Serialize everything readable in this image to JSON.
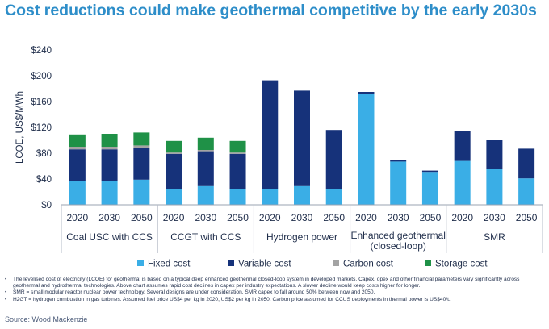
{
  "title": "Cost reductions could make geothermal competitive by the early 2030s",
  "chart_data": {
    "type": "bar",
    "stacked": true,
    "ylabel": "LCOE, US$/MWh",
    "ylim": [
      0,
      240
    ],
    "yticks": [
      "$0",
      "$40",
      "$80",
      "$120",
      "$160",
      "$200",
      "$240"
    ],
    "ytick_values": [
      0,
      40,
      80,
      120,
      160,
      200,
      240
    ],
    "groups": [
      {
        "name": "Coal USC with CCS",
        "years": [
          "2020",
          "2030",
          "2050"
        ]
      },
      {
        "name": "CCGT with CCS",
        "years": [
          "2020",
          "2030",
          "2050"
        ]
      },
      {
        "name": "Hydrogen power",
        "years": [
          "2020",
          "2030",
          "2050"
        ]
      },
      {
        "name": "Enhanced geothermal (closed-loop)",
        "name_lines": [
          "Enhanced geothermal",
          "(closed-loop)"
        ],
        "years": [
          "2020",
          "2030",
          "2050"
        ]
      },
      {
        "name": "SMR",
        "years": [
          "2020",
          "2030",
          "2050"
        ]
      }
    ],
    "series": [
      {
        "name": "Fixed cost",
        "color": "#3aaee6",
        "values": [
          37,
          37,
          39,
          25,
          29,
          25,
          25,
          29,
          25,
          172,
          67,
          51,
          68,
          55,
          41
        ]
      },
      {
        "name": "Variable cost",
        "color": "#16327a",
        "values": [
          49,
          49,
          49,
          54,
          54,
          54,
          168,
          148,
          91,
          3,
          2,
          2,
          47,
          45,
          46
        ]
      },
      {
        "name": "Carbon cost",
        "color": "#a3a3a3",
        "values": [
          4,
          4,
          4,
          2,
          2,
          2,
          0,
          0,
          0,
          0,
          0,
          0,
          0,
          0,
          0
        ]
      },
      {
        "name": "Storage cost",
        "color": "#1f9147",
        "values": [
          19,
          20,
          20,
          18,
          19,
          18,
          0,
          0,
          0,
          0,
          0,
          0,
          0,
          0,
          0
        ]
      }
    ],
    "legend_position": "bottom",
    "grid": false
  },
  "notes": [
    "The levelised cost of electricity (LCOE) for geothermal is based on a typical deep enhanced geothermal closed-loop system in developed markets. Capex, opex and other financial parameters vary significantly across geothermal and hydrothermal technologies. Above chart assumes rapid cost declines in capex per industry expectations. A slower decline would keep costs higher for longer.",
    "SMR = small modular reactor nuclear power technology. Several designs are under consideration. SMR capex to fall around 50% between now and 2050.",
    "H2GT = hydrogen combustion in gas turbines. Assumed fuel price US$4 per kg in 2020, US$2 per kg in 2050. Carbon price assumed for CCUS deployments in thermal power is US$40/t."
  ],
  "source": "Source: Wood Mackenzie"
}
